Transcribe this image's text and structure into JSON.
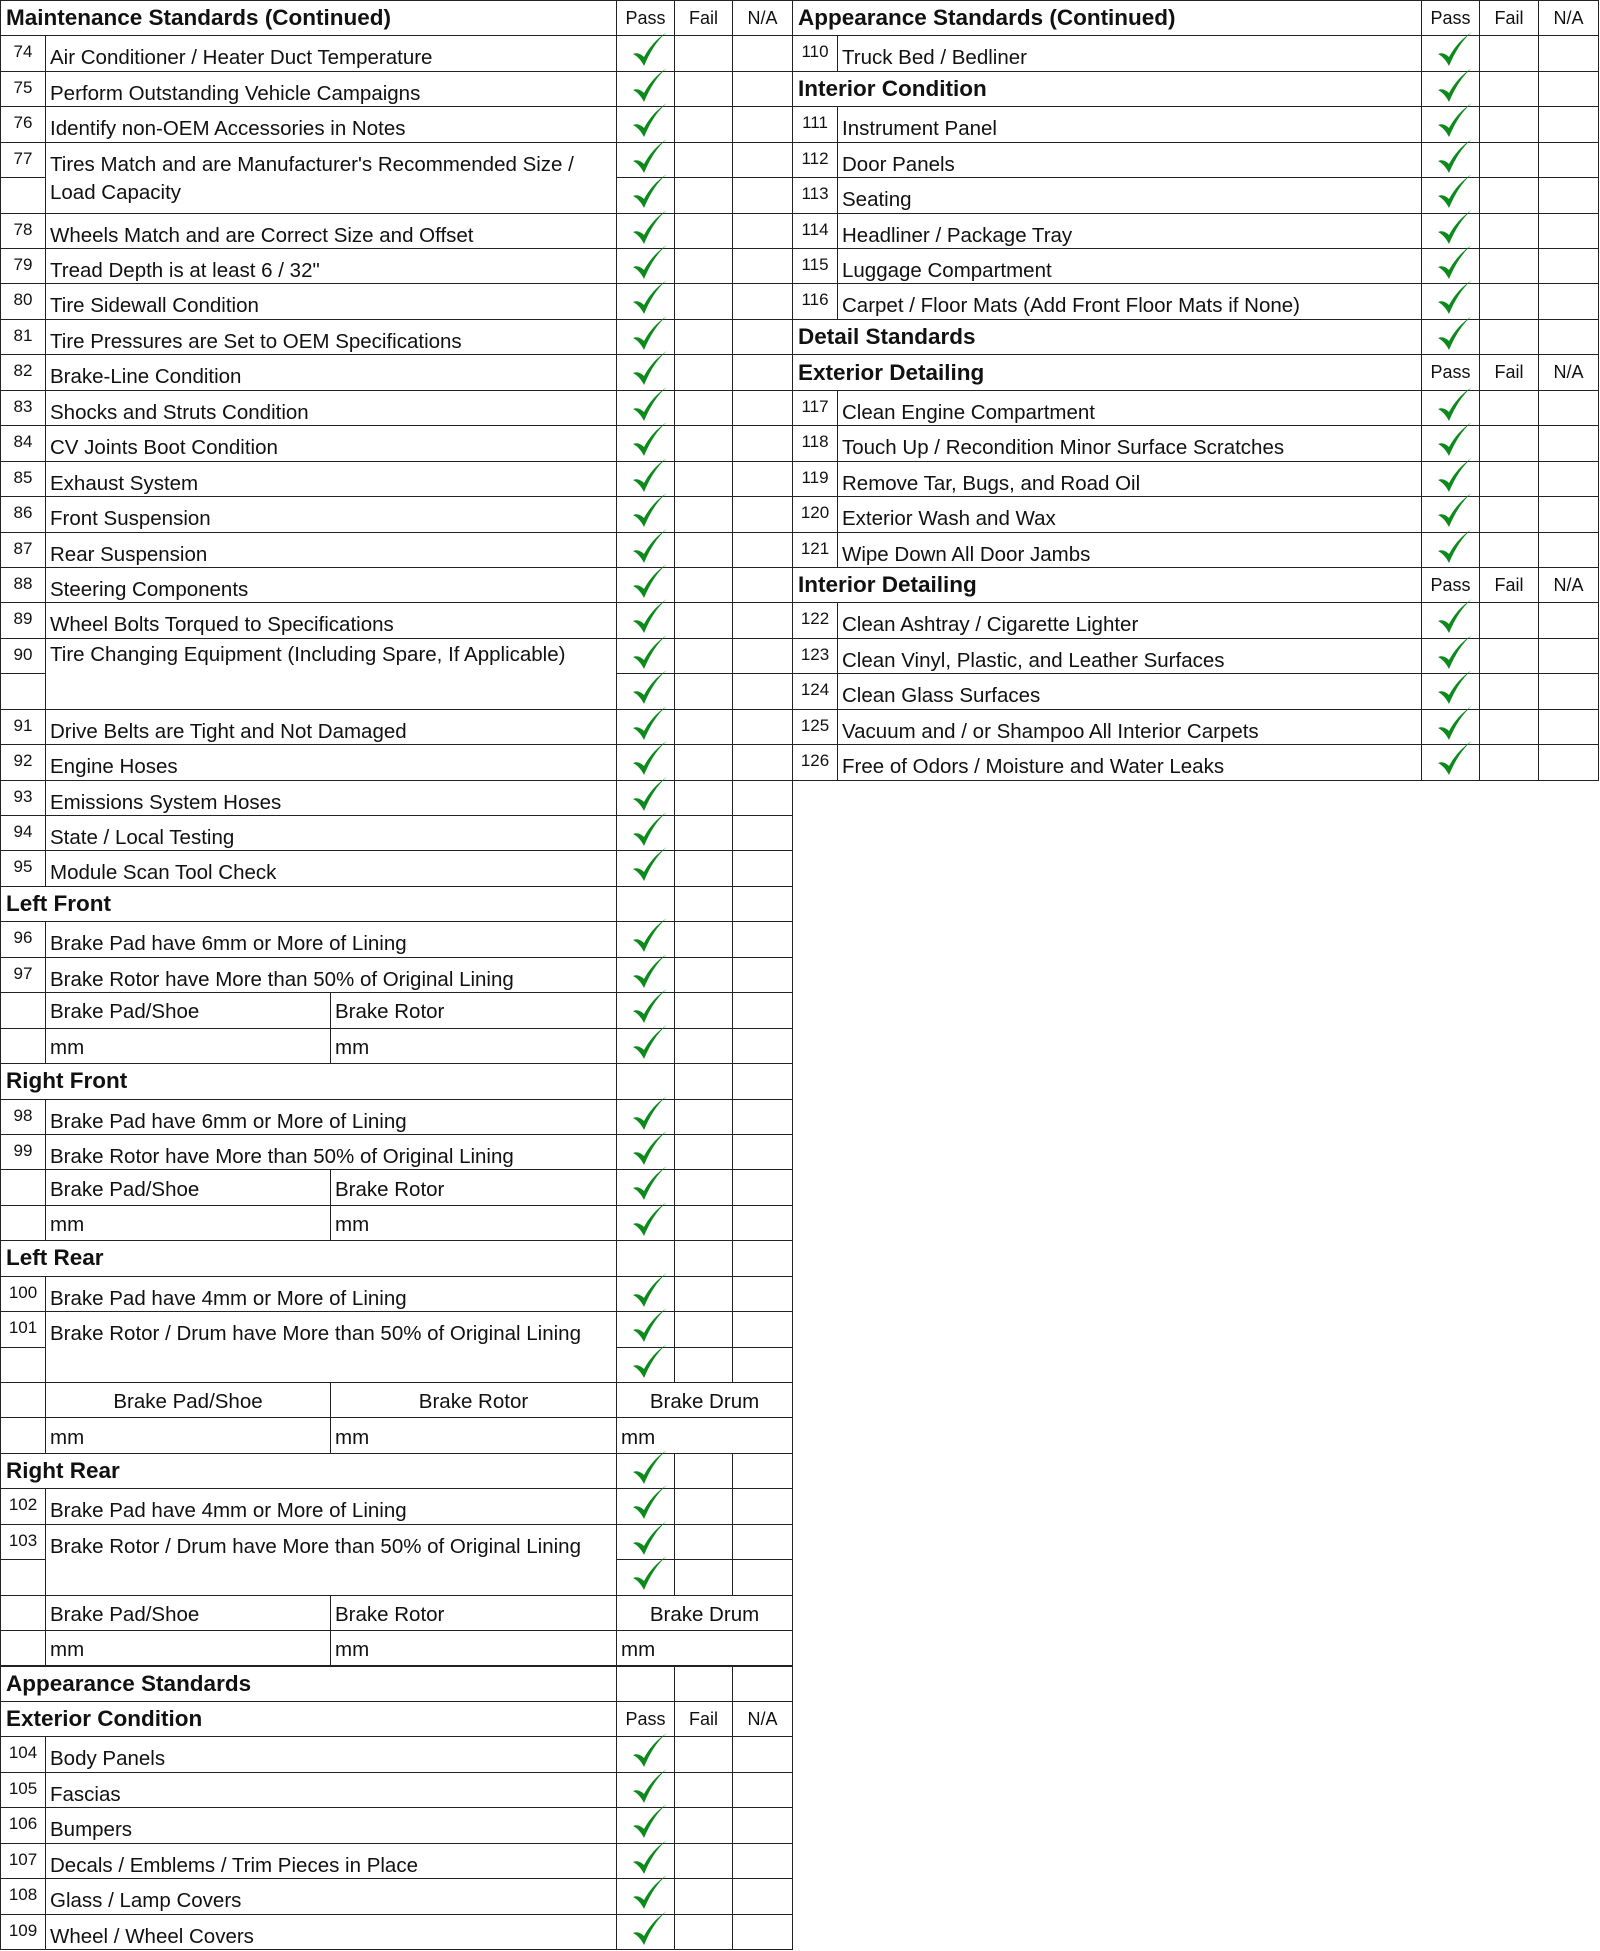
{
  "check_color": "#0c8a1c",
  "check_icon": "checkmark-icon",
  "left": [
    {
      "type": "header",
      "title": "Maintenance Standards (Continued)",
      "labels": [
        "Pass",
        "Fail",
        "N/A"
      ]
    },
    {
      "type": "item",
      "num": "74",
      "text": "Air Conditioner / Heater Duct Temperature",
      "pass": true
    },
    {
      "type": "item",
      "num": "75",
      "text": "Perform Outstanding Vehicle Campaigns",
      "pass": true
    },
    {
      "type": "item",
      "num": "76",
      "text": "Identify non-OEM Accessories in Notes",
      "pass": true
    },
    {
      "type": "item",
      "num": "77",
      "text": "Tires Match and are Manufacturer's Recommended Size / Load Capacity",
      "span": 2,
      "pass": true
    },
    {
      "type": "cont",
      "pass": true
    },
    {
      "type": "item",
      "num": "78",
      "text": "Wheels Match and are Correct Size and Offset",
      "pass": true
    },
    {
      "type": "item",
      "num": "79",
      "text": "Tread Depth is at least 6 / 32\"",
      "pass": true
    },
    {
      "type": "item",
      "num": "80",
      "text": "Tire Sidewall Condition",
      "pass": true
    },
    {
      "type": "item",
      "num": "81",
      "text": "Tire Pressures are Set to OEM Specifications",
      "pass": true
    },
    {
      "type": "item",
      "num": "82",
      "text": "Brake-Line Condition",
      "pass": true
    },
    {
      "type": "item",
      "num": "83",
      "text": "Shocks and Struts Condition",
      "pass": true
    },
    {
      "type": "item",
      "num": "84",
      "text": "CV Joints Boot Condition",
      "pass": true
    },
    {
      "type": "item",
      "num": "85",
      "text": "Exhaust System",
      "pass": true
    },
    {
      "type": "item",
      "num": "86",
      "text": "Front Suspension",
      "pass": true
    },
    {
      "type": "item",
      "num": "87",
      "text": "Rear Suspension",
      "pass": true
    },
    {
      "type": "item",
      "num": "88",
      "text": "Steering Components",
      "pass": true
    },
    {
      "type": "item",
      "num": "89",
      "text": "Wheel Bolts Torqued to Specifications",
      "pass": true
    },
    {
      "type": "item",
      "num": "90",
      "text": "Tire Changing Equipment (Including Spare, If Applicable)",
      "span": 2,
      "pass": true,
      "tight": true
    },
    {
      "type": "cont",
      "pass": true
    },
    {
      "type": "item",
      "num": "91",
      "text": "Drive Belts are Tight and Not Damaged",
      "pass": true
    },
    {
      "type": "item",
      "num": "92",
      "text": "Engine Hoses",
      "pass": true
    },
    {
      "type": "item",
      "num": "93",
      "text": "Emissions System Hoses",
      "pass": true
    },
    {
      "type": "item",
      "num": "94",
      "text": "State / Local Testing",
      "pass": true
    },
    {
      "type": "item",
      "num": "95",
      "text": "Module Scan Tool Check",
      "pass": true
    },
    {
      "type": "section",
      "title": "Left Front",
      "pass": false
    },
    {
      "type": "item",
      "num": "96",
      "text": "Brake Pad have 6mm or More of Lining",
      "pass": true
    },
    {
      "type": "item",
      "num": "97",
      "text": "Brake Rotor have More than 50% of Original Lining",
      "pass": true
    },
    {
      "type": "measure",
      "cols": [
        "Brake Pad/Shoe",
        "Brake Rotor"
      ],
      "pass": true
    },
    {
      "type": "measure",
      "cols": [
        "mm",
        "mm"
      ],
      "pass": true
    },
    {
      "type": "section",
      "title": "Right Front",
      "pass": false
    },
    {
      "type": "item",
      "num": "98",
      "text": "Brake Pad have 6mm or More of Lining",
      "pass": true
    },
    {
      "type": "item",
      "num": "99",
      "text": "Brake Rotor have More than 50% of Original Lining",
      "pass": true
    },
    {
      "type": "measure",
      "cols": [
        "Brake Pad/Shoe",
        "Brake Rotor"
      ],
      "pass": true
    },
    {
      "type": "measure",
      "cols": [
        "mm",
        "mm"
      ],
      "pass": true
    },
    {
      "type": "section",
      "title": "Left Rear",
      "pass": false
    },
    {
      "type": "item",
      "num": "100",
      "text": "Brake Pad have 4mm or More of Lining",
      "pass": true
    },
    {
      "type": "item",
      "num": "101",
      "text": "Brake Rotor / Drum have More than 50% of Original Lining",
      "span": 2,
      "pass": true
    },
    {
      "type": "cont",
      "pass": true
    },
    {
      "type": "measure",
      "cols": [
        "Brake Pad/Shoe",
        "Brake Rotor",
        "Brake Drum"
      ],
      "center": true
    },
    {
      "type": "measure",
      "cols": [
        "mm",
        "mm",
        "mm"
      ]
    },
    {
      "type": "section",
      "title": "Right Rear",
      "pass": true
    },
    {
      "type": "item",
      "num": "102",
      "text": "Brake Pad have 4mm or More of Lining",
      "pass": true
    },
    {
      "type": "item",
      "num": "103",
      "text": "Brake Rotor / Drum have More than 50% of Original Lining",
      "span": 2,
      "pass": true
    },
    {
      "type": "cont",
      "pass": true
    },
    {
      "type": "measure",
      "cols": [
        "Brake Pad/Shoe",
        "Brake Rotor",
        "Brake Drum"
      ],
      "center_last": true
    },
    {
      "type": "measure",
      "cols": [
        "mm",
        "mm",
        "mm"
      ]
    },
    {
      "type": "section",
      "title": "Appearance Standards",
      "pass": false
    },
    {
      "type": "header",
      "title": "Exterior Condition",
      "labels": [
        "Pass",
        "Fail",
        "N/A"
      ]
    },
    {
      "type": "item",
      "num": "104",
      "text": "Body Panels",
      "pass": true
    },
    {
      "type": "item",
      "num": "105",
      "text": "Fascias",
      "pass": true
    },
    {
      "type": "item",
      "num": "106",
      "text": "Bumpers",
      "pass": true
    },
    {
      "type": "item",
      "num": "107",
      "text": "Decals / Emblems / Trim Pieces in Place",
      "pass": true
    },
    {
      "type": "item",
      "num": "108",
      "text": "Glass / Lamp Covers",
      "pass": true
    },
    {
      "type": "item",
      "num": "109",
      "text": "Wheel / Wheel Covers",
      "pass": true
    }
  ],
  "right": [
    {
      "type": "header",
      "title": "Appearance Standards (Continued)",
      "labels": [
        "Pass",
        "Fail",
        "N/A"
      ]
    },
    {
      "type": "item",
      "num": "110",
      "text": "Truck Bed / Bedliner",
      "pass": true
    },
    {
      "type": "section",
      "title": "Interior Condition",
      "pass": true
    },
    {
      "type": "item",
      "num": "111",
      "text": "Instrument Panel",
      "pass": true
    },
    {
      "type": "item",
      "num": "112",
      "text": "Door Panels",
      "pass": true
    },
    {
      "type": "item",
      "num": "113",
      "text": "Seating",
      "pass": true
    },
    {
      "type": "item",
      "num": "114",
      "text": "Headliner / Package Tray",
      "pass": true
    },
    {
      "type": "item",
      "num": "115",
      "text": "Luggage Compartment",
      "pass": true
    },
    {
      "type": "item",
      "num": "116",
      "text": "Carpet / Floor Mats (Add Front Floor Mats if None)",
      "pass": true
    },
    {
      "type": "section",
      "title": "Detail Standards",
      "pass": true
    },
    {
      "type": "header",
      "title": "Exterior Detailing",
      "labels": [
        "Pass",
        "Fail",
        "N/A"
      ]
    },
    {
      "type": "item",
      "num": "117",
      "text": "Clean Engine Compartment",
      "pass": true
    },
    {
      "type": "item",
      "num": "118",
      "text": "Touch Up / Recondition Minor Surface Scratches",
      "pass": true
    },
    {
      "type": "item",
      "num": "119",
      "text": "Remove Tar, Bugs, and Road Oil",
      "pass": true
    },
    {
      "type": "item",
      "num": "120",
      "text": "Exterior Wash and Wax",
      "pass": true
    },
    {
      "type": "item",
      "num": "121",
      "text": "Wipe Down All Door Jambs",
      "pass": true
    },
    {
      "type": "header",
      "title": "Interior Detailing",
      "labels": [
        "Pass",
        "Fail",
        "N/A"
      ]
    },
    {
      "type": "item",
      "num": "122",
      "text": "Clean Ashtray / Cigarette Lighter",
      "pass": true
    },
    {
      "type": "item",
      "num": "123",
      "text": "Clean Vinyl, Plastic, and Leather Surfaces",
      "pass": true
    },
    {
      "type": "item",
      "num": "124",
      "text": "Clean Glass Surfaces",
      "pass": true
    },
    {
      "type": "item",
      "num": "125",
      "text": "Vacuum and / or Shampoo All Interior Carpets",
      "pass": true
    },
    {
      "type": "item",
      "num": "126",
      "text": "Free of Odors / Moisture and Water Leaks",
      "pass": true
    }
  ]
}
